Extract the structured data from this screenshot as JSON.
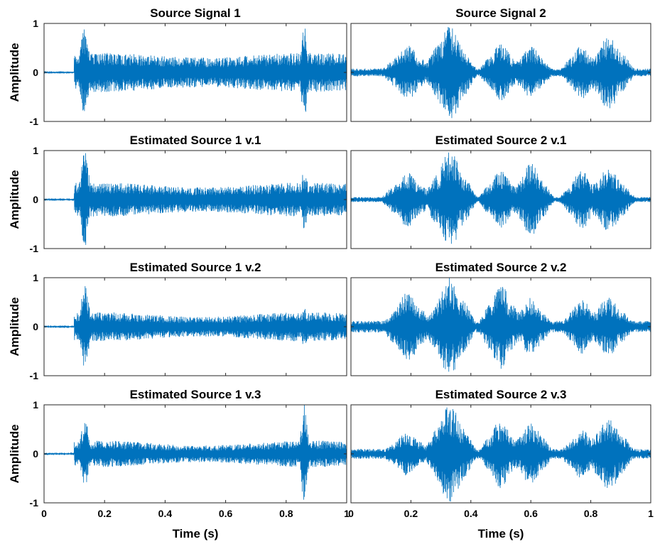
{
  "chart_data": {
    "type": "line",
    "layout": "4x2 grid of waveform subplots",
    "line_color": "#0072BD",
    "xlim": [
      0,
      1
    ],
    "ylim": [
      -1,
      1
    ],
    "xticks": [
      "0",
      "0.2",
      "0.4",
      "0.6",
      "0.8",
      "1"
    ],
    "yticks": [
      "1",
      "0",
      "-1"
    ],
    "xlabel": "Time (s)",
    "ylabel": "Amplitude",
    "panels": [
      {
        "title": "Source Signal 1",
        "kind": "speech1",
        "bursts": [
          {
            "t": 0.135,
            "a": 1.0,
            "w": 0.012
          },
          {
            "t": 0.86,
            "a": 0.95,
            "w": 0.01
          }
        ],
        "base": 0.35
      },
      {
        "title": "Source Signal 2",
        "kind": "speech2",
        "bursts": [
          {
            "t": 0.19,
            "a": 0.55,
            "w": 0.035
          },
          {
            "t": 0.33,
            "a": 1.0,
            "w": 0.035
          },
          {
            "t": 0.5,
            "a": 0.6,
            "w": 0.03
          },
          {
            "t": 0.6,
            "a": 0.55,
            "w": 0.03
          },
          {
            "t": 0.77,
            "a": 0.55,
            "w": 0.03
          },
          {
            "t": 0.86,
            "a": 0.75,
            "w": 0.035
          }
        ],
        "base": 0.08
      },
      {
        "title": "Estimated Source 1 v.1",
        "kind": "speech1",
        "bursts": [
          {
            "t": 0.135,
            "a": 1.0,
            "w": 0.012
          },
          {
            "t": 0.86,
            "a": 0.6,
            "w": 0.01
          }
        ],
        "base": 0.3
      },
      {
        "title": "Estimated Source 2 v.1",
        "kind": "speech2",
        "bursts": [
          {
            "t": 0.19,
            "a": 0.55,
            "w": 0.035
          },
          {
            "t": 0.33,
            "a": 0.98,
            "w": 0.035
          },
          {
            "t": 0.5,
            "a": 0.6,
            "w": 0.03
          },
          {
            "t": 0.6,
            "a": 0.75,
            "w": 0.03
          },
          {
            "t": 0.77,
            "a": 0.6,
            "w": 0.03
          },
          {
            "t": 0.86,
            "a": 0.65,
            "w": 0.035
          }
        ],
        "base": 0.05
      },
      {
        "title": "Estimated Source 1 v.2",
        "kind": "speech1",
        "bursts": [
          {
            "t": 0.135,
            "a": 0.85,
            "w": 0.012
          },
          {
            "t": 0.86,
            "a": 0.4,
            "w": 0.01
          }
        ],
        "base": 0.25
      },
      {
        "title": "Estimated Source 2 v.2",
        "kind": "speech2",
        "bursts": [
          {
            "t": 0.19,
            "a": 0.7,
            "w": 0.035
          },
          {
            "t": 0.33,
            "a": 1.0,
            "w": 0.035
          },
          {
            "t": 0.5,
            "a": 0.88,
            "w": 0.03
          },
          {
            "t": 0.6,
            "a": 0.6,
            "w": 0.03
          },
          {
            "t": 0.77,
            "a": 0.55,
            "w": 0.03
          },
          {
            "t": 0.86,
            "a": 0.6,
            "w": 0.035
          }
        ],
        "base": 0.12
      },
      {
        "title": "Estimated Source 1 v.3",
        "kind": "speech1",
        "bursts": [
          {
            "t": 0.135,
            "a": 0.7,
            "w": 0.012
          },
          {
            "t": 0.86,
            "a": 1.0,
            "w": 0.01
          }
        ],
        "base": 0.22
      },
      {
        "title": "Estimated Source 2 v.3",
        "kind": "speech2",
        "bursts": [
          {
            "t": 0.19,
            "a": 0.45,
            "w": 0.035
          },
          {
            "t": 0.33,
            "a": 1.0,
            "w": 0.035
          },
          {
            "t": 0.5,
            "a": 0.7,
            "w": 0.03
          },
          {
            "t": 0.6,
            "a": 0.65,
            "w": 0.03
          },
          {
            "t": 0.77,
            "a": 0.5,
            "w": 0.03
          },
          {
            "t": 0.86,
            "a": 0.75,
            "w": 0.035
          }
        ],
        "base": 0.1
      }
    ]
  }
}
